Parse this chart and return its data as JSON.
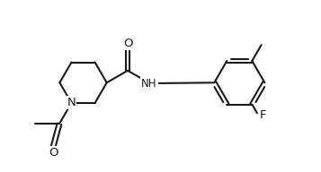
{
  "background": "#ffffff",
  "line_color": "#1a1a1a",
  "line_width": 1.5,
  "font_size": 8.5,
  "figsize": [
    3.57,
    1.92
  ],
  "dpi": 100,
  "xlim": [
    0,
    9.5
  ],
  "ylim": [
    0,
    5.1
  ]
}
